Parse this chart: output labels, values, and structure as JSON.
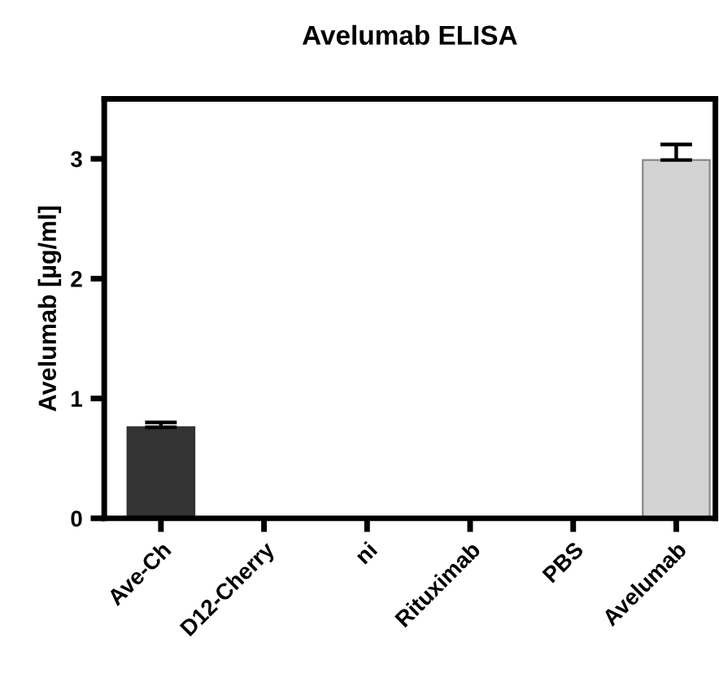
{
  "chart_data": {
    "type": "bar",
    "title": "Avelumab ELISA",
    "ylabel": "Avelumab [µg/ml]",
    "categories": [
      "Ave-Ch",
      "D12-Cherry",
      "ni",
      "Rituximab",
      "PBS",
      "Avelumab"
    ],
    "values": [
      0.76,
      0,
      0,
      0,
      0,
      2.99
    ],
    "errors": [
      [
        0.76,
        0.8
      ],
      null,
      null,
      null,
      null,
      [
        2.99,
        3.12
      ]
    ],
    "colors": [
      "#333333",
      "#333333",
      "#333333",
      "#333333",
      "#333333",
      "#d3d3d3"
    ],
    "ylim": [
      0,
      3.5
    ],
    "yticks": [
      0,
      1,
      2,
      3
    ],
    "grid": false,
    "legend": false
  }
}
